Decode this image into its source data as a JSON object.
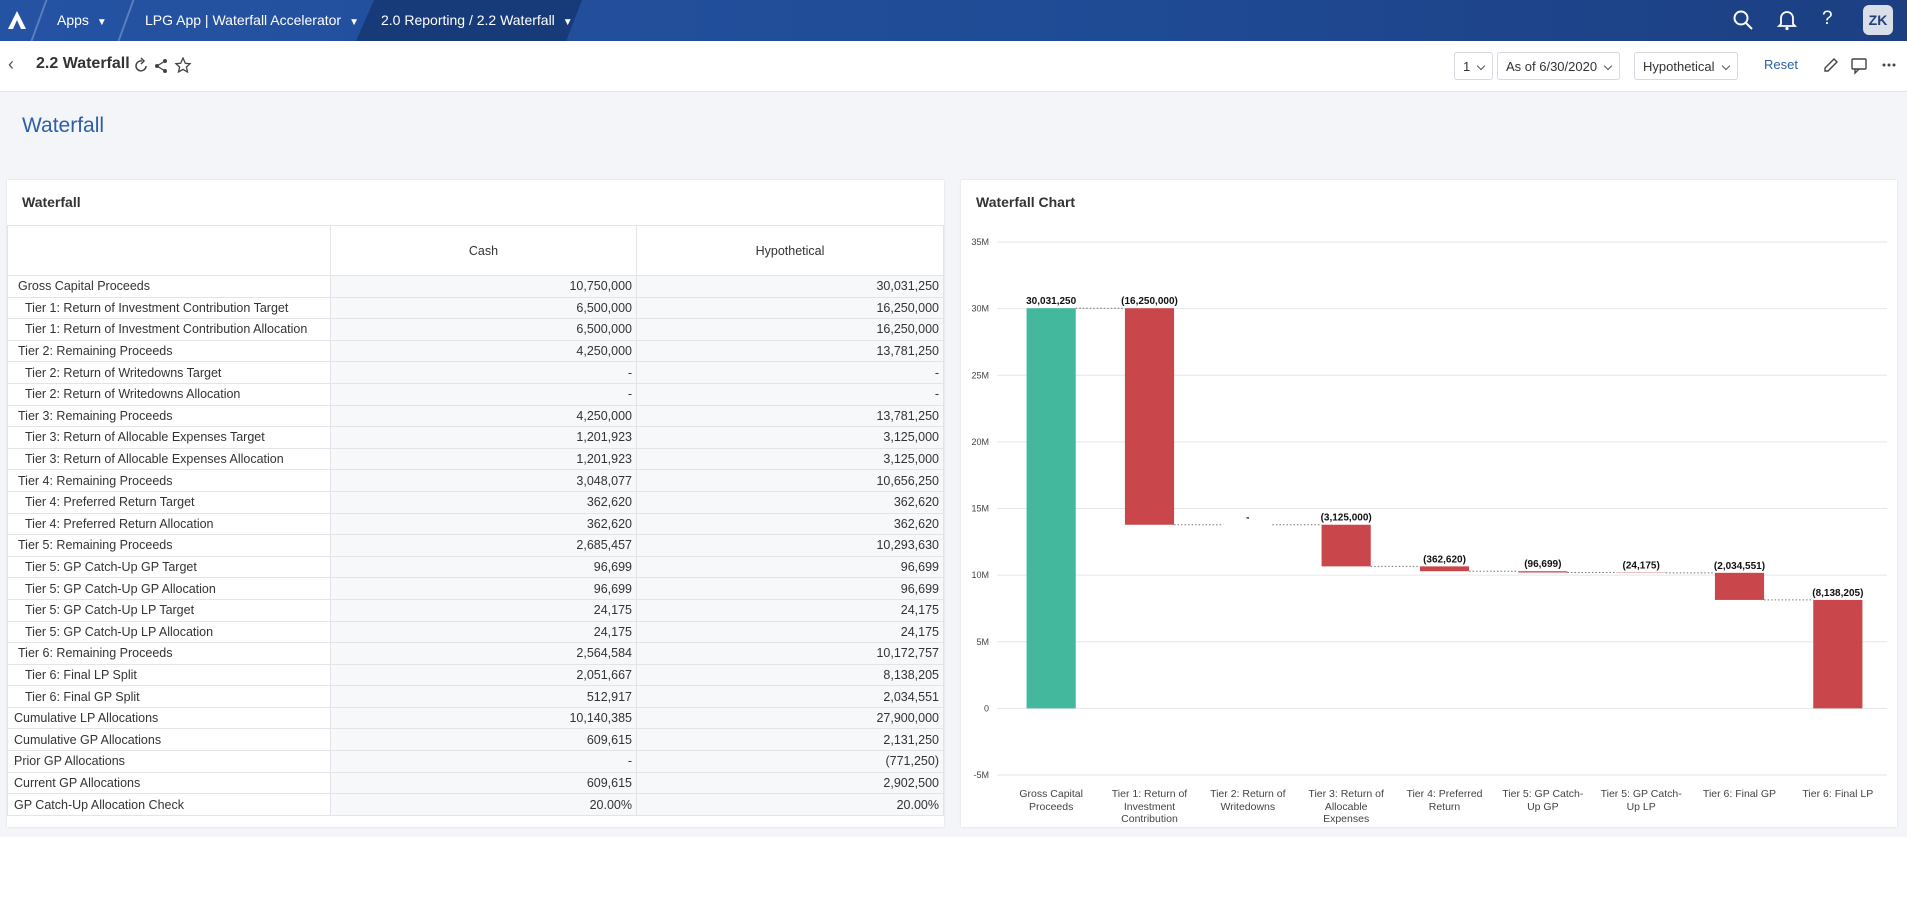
{
  "nav": {
    "apps": "Apps",
    "app": "LPG App | Waterfall Accelerator",
    "page": "2.0 Reporting / 2.2 Waterfall",
    "user": "ZK"
  },
  "header": {
    "title": "2.2 Waterfall",
    "scenario_number": "1",
    "as_of": "As of 6/30/2020",
    "scenario": "Hypothetical",
    "reset": "Reset"
  },
  "page_title": "Waterfall",
  "table": {
    "title": "Waterfall",
    "columns": [
      "Cash",
      "Hypothetical"
    ],
    "rows": [
      [
        "Gross Capital Proceeds",
        "10,750,000",
        "30,031,250"
      ],
      [
        "Tier 1: Return of Investment Contribution Target",
        "6,500,000",
        "16,250,000"
      ],
      [
        "Tier 1: Return of Investment Contribution Allocation",
        "6,500,000",
        "16,250,000"
      ],
      [
        "Tier 2: Remaining Proceeds",
        "4,250,000",
        "13,781,250"
      ],
      [
        "Tier 2: Return of Writedowns Target",
        "-",
        "-"
      ],
      [
        "Tier 2: Return of Writedowns Allocation",
        "-",
        "-"
      ],
      [
        "Tier 3: Remaining Proceeds",
        "4,250,000",
        "13,781,250"
      ],
      [
        "Tier 3: Return of Allocable Expenses Target",
        "1,201,923",
        "3,125,000"
      ],
      [
        "Tier 3: Return of Allocable Expenses Allocation",
        "1,201,923",
        "3,125,000"
      ],
      [
        "Tier 4: Remaining Proceeds",
        "3,048,077",
        "10,656,250"
      ],
      [
        "Tier 4: Preferred Return Target",
        "362,620",
        "362,620"
      ],
      [
        "Tier 4: Preferred Return Allocation",
        "362,620",
        "362,620"
      ],
      [
        "Tier 5: Remaining Proceeds",
        "2,685,457",
        "10,293,630"
      ],
      [
        "Tier 5: GP Catch-Up GP Target",
        "96,699",
        "96,699"
      ],
      [
        "Tier 5: GP Catch-Up GP Allocation",
        "96,699",
        "96,699"
      ],
      [
        "Tier 5: GP Catch-Up LP Target",
        "24,175",
        "24,175"
      ],
      [
        "Tier 5: GP Catch-Up LP Allocation",
        "24,175",
        "24,175"
      ],
      [
        "Tier 6: Remaining Proceeds",
        "2,564,584",
        "10,172,757"
      ],
      [
        "Tier 6: Final LP Split",
        "2,051,667",
        "8,138,205"
      ],
      [
        "Tier 6: Final GP Split",
        "512,917",
        "2,034,551"
      ],
      [
        "Cumulative LP Allocations",
        "10,140,385",
        "27,900,000"
      ],
      [
        "Cumulative GP Allocations",
        "609,615",
        "2,131,250"
      ],
      [
        "Prior GP Allocations",
        "-",
        "(771,250)"
      ],
      [
        "Current GP Allocations",
        "609,615",
        "2,902,500"
      ],
      [
        "GP Catch-Up Allocation Check",
        "20.00%",
        "20.00%"
      ]
    ]
  },
  "chart_data": {
    "type": "waterfall",
    "title": "Waterfall Chart",
    "categories": [
      "Gross Capital Proceeds",
      "Tier 1: Return of Investment Contribution",
      "Tier 2: Return of Writedowns",
      "Tier 3: Return of Allocable Expenses",
      "Tier 4: Preferred Return",
      "Tier 5: GP Catch-Up GP",
      "Tier 5: GP Catch-Up LP",
      "Tier 6: Final GP",
      "Tier 6: Final LP"
    ],
    "values": [
      30031250,
      -16250000,
      0,
      -3125000,
      -362620,
      -96699,
      -24175,
      -2034551,
      -8138205
    ],
    "value_labels": [
      "30,031,250",
      "(16,250,000)",
      "-",
      "(3,125,000)",
      "(362,620)",
      "(96,699)",
      "(24,175)",
      "(2,034,551)",
      "(8,138,205)"
    ],
    "colors": {
      "increase": "#43b89c",
      "decrease": "#c9474a"
    },
    "ylim": [
      -5000000,
      35000000
    ],
    "yticks": [
      {
        "value": -5000000,
        "label": "-5M"
      },
      0,
      {
        "value": 5000000,
        "label": "5M"
      },
      {
        "value": 10000000,
        "label": "10M"
      },
      {
        "value": 15000000,
        "label": "15M"
      },
      {
        "value": 20000000,
        "label": "20M"
      },
      {
        "value": 25000000,
        "label": "25M"
      },
      {
        "value": 30000000,
        "label": "30M"
      },
      {
        "value": 35000000,
        "label": "35M"
      }
    ],
    "grid": true
  }
}
